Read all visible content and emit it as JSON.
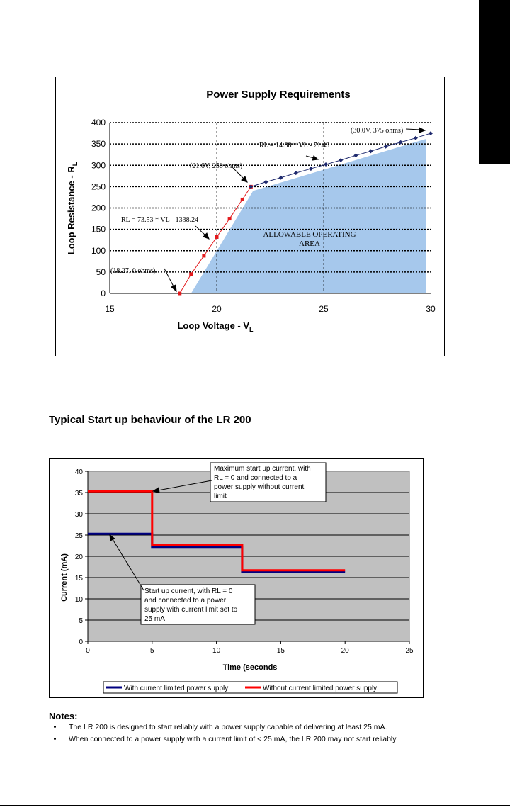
{
  "page_heading": "Typical Start up behaviour of the LR 200",
  "notes": {
    "title": "Notes:",
    "items": [
      "The LR 200 is designed to start reliably with a power supply capable of delivering at least 25 mA.",
      "When connected to a power supply with a current limit of < 25 mA, the LR 200 may not start reliably"
    ]
  },
  "chart_data": [
    {
      "type": "scatter",
      "title": "Power Supply Requirements",
      "xlabel": "Loop Voltage - V",
      "xlabel_sub": "L",
      "ylabel": "Loop Resistance - R",
      "ylabel_sub": "L",
      "xlim": [
        15,
        30
      ],
      "ylim": [
        0,
        400
      ],
      "x_ticks": [
        "15",
        "20",
        "25",
        "30"
      ],
      "y_ticks": [
        "0",
        "50",
        "100",
        "150",
        "200",
        "250",
        "300",
        "350",
        "400"
      ],
      "grid": "horizontal dotted, vertical dashed at 20 and 25",
      "region_label_line1": "ALLOWABLE  OPERATING",
      "region_label_line2": "AREA",
      "region_color": "#a6c8ec",
      "region": [
        [
          18.8,
          0
        ],
        [
          21.7,
          240
        ],
        [
          29.8,
          362
        ],
        [
          29.8,
          0
        ]
      ],
      "series": [
        {
          "color": "#e3191c",
          "x": [
            18.27,
            18.8,
            19.4,
            20.0,
            20.6,
            21.2,
            21.6
          ],
          "y": [
            0,
            45,
            88,
            132,
            175,
            220,
            250
          ]
        },
        {
          "color": "#1f2a6e",
          "x": [
            21.6,
            22.3,
            23.0,
            23.7,
            24.4,
            25.1,
            25.8,
            26.5,
            27.2,
            27.9,
            28.6,
            29.3,
            30.0
          ],
          "y": [
            250,
            261,
            271,
            282,
            292,
            302,
            312,
            323,
            333,
            344,
            354,
            364,
            375
          ]
        }
      ],
      "annotations": {
        "eq_red": "RL = 73.53 * VL - 1338.24",
        "eq_blue": "RL = 14.88 * VL - 71.43",
        "pt_start": "(18.27, 0 ohms)",
        "pt_mid": "(21.6V, 250 ohms)",
        "pt_end": "(30.0V, 375 ohms)"
      }
    },
    {
      "type": "line",
      "xlabel": "Time (seconds",
      "ylabel": "Current (mA)",
      "xlim": [
        0,
        25
      ],
      "ylim": [
        0,
        40
      ],
      "x_ticks": [
        "0",
        "5",
        "10",
        "15",
        "20",
        "25"
      ],
      "y_ticks": [
        "0",
        "5",
        "10",
        "15",
        "20",
        "25",
        "30",
        "35",
        "40"
      ],
      "plot_background": "#c0c0c0",
      "legend_position": "bottom",
      "series": [
        {
          "name": "With current limited power supply",
          "color": "#000080",
          "x": [
            0,
            5,
            5,
            12,
            12,
            20
          ],
          "y": [
            25.3,
            25.3,
            22.2,
            22.2,
            16.3,
            16.3
          ]
        },
        {
          "name": "Without current limited power supply",
          "color": "#ff0000",
          "x": [
            0,
            5,
            5,
            12,
            12,
            20
          ],
          "y": [
            35.3,
            35.3,
            22.7,
            22.7,
            16.7,
            16.7
          ]
        }
      ],
      "annotations": {
        "callout_top": [
          "Maximum start up current, with",
          "RL = 0 and connected to a",
          "power supply without current",
          "limit"
        ],
        "callout_bottom": [
          "Start up current, with RL = 0",
          "and connected to a power",
          "supply with current limit set to",
          "25 mA"
        ]
      }
    }
  ]
}
